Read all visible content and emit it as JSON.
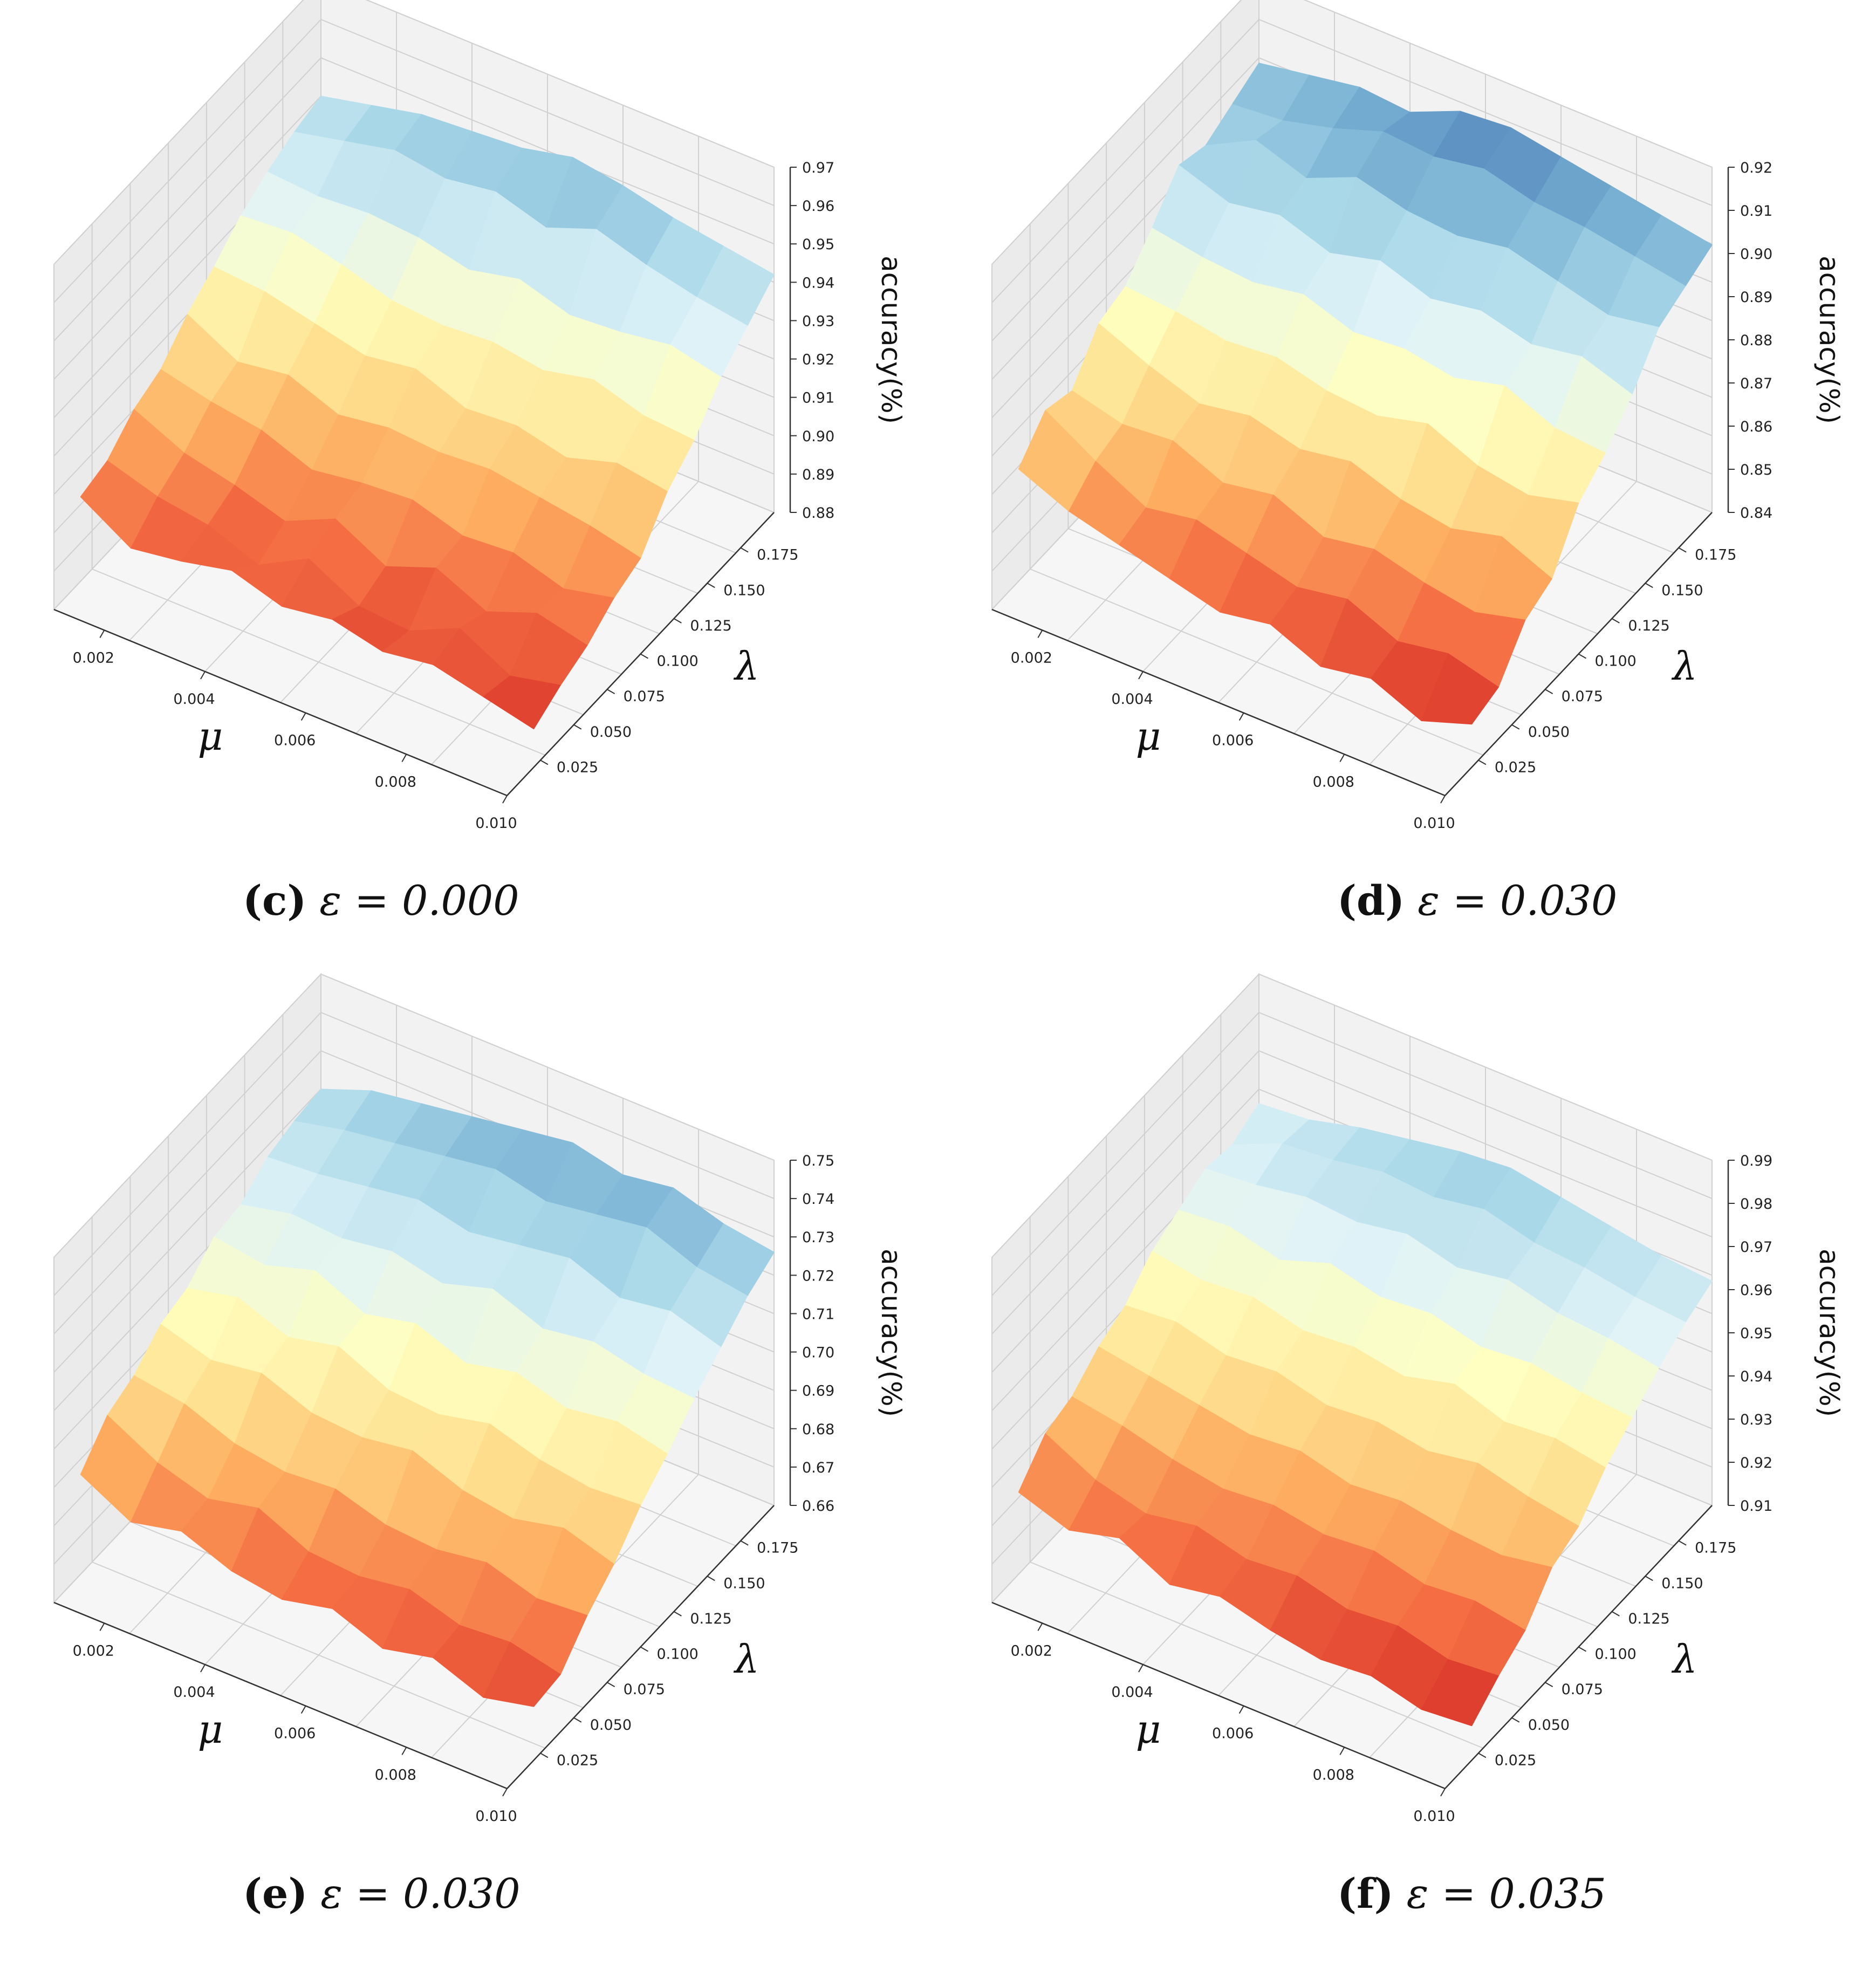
{
  "figure": {
    "panels": [
      {
        "id": "c",
        "caption_label": "(c)",
        "caption_eq": "ε = 0.000"
      },
      {
        "id": "d",
        "caption_label": "(d)",
        "caption_eq": "ε = 0.030"
      },
      {
        "id": "e",
        "caption_label": "(e)",
        "caption_eq": "ε = 0.030"
      },
      {
        "id": "f",
        "caption_label": "(f)",
        "caption_eq": "ε = 0.035"
      }
    ]
  },
  "colors": {
    "colormap": [
      "#a50026",
      "#d73027",
      "#f46d43",
      "#fdae61",
      "#fee090",
      "#ffffbf",
      "#e0f3f8",
      "#abd9e9",
      "#74add1",
      "#4575b4",
      "#313695"
    ]
  },
  "chart_data": [
    {
      "type": "surface3d",
      "title": "(c) ε = 0.000",
      "xlabel": "μ",
      "ylabel": "λ",
      "zlabel": "accuracy(%)",
      "x_ticks": [
        "0.002",
        "0.004",
        "0.006",
        "0.008",
        "0.010"
      ],
      "y_ticks": [
        "0.025",
        "0.050",
        "0.075",
        "0.100",
        "0.125",
        "0.150",
        "0.175"
      ],
      "z_ticks": [
        "0.88",
        "0.89",
        "0.90",
        "0.91",
        "0.92",
        "0.93",
        "0.94",
        "0.95",
        "0.96",
        "0.97"
      ],
      "x_range": [
        0.001,
        0.01
      ],
      "y_range": [
        0.0,
        0.2
      ],
      "zlim": [
        0.88,
        0.97
      ],
      "mu": [
        0.001,
        0.002,
        0.003,
        0.004,
        0.005,
        0.006,
        0.007,
        0.008,
        0.009,
        0.01
      ],
      "lambda": [
        0.02,
        0.04,
        0.06,
        0.08,
        0.1,
        0.12,
        0.14,
        0.16,
        0.18,
        0.2
      ],
      "z": [
        [
          0.902,
          0.904,
          0.91,
          0.913,
          0.92,
          0.925,
          0.931,
          0.935,
          0.938,
          0.94
        ],
        [
          0.894,
          0.9,
          0.904,
          0.91,
          0.913,
          0.924,
          0.932,
          0.934,
          0.941,
          0.943
        ],
        [
          0.896,
          0.898,
          0.901,
          0.908,
          0.915,
          0.921,
          0.929,
          0.935,
          0.944,
          0.946
        ],
        [
          0.899,
          0.893,
          0.897,
          0.903,
          0.91,
          0.918,
          0.925,
          0.934,
          0.942,
          0.947
        ],
        [
          0.895,
          0.9,
          0.903,
          0.905,
          0.912,
          0.92,
          0.924,
          0.931,
          0.944,
          0.948
        ],
        [
          0.897,
          0.893,
          0.896,
          0.906,
          0.911,
          0.915,
          0.925,
          0.934,
          0.94,
          0.951
        ],
        [
          0.894,
          0.892,
          0.901,
          0.902,
          0.912,
          0.916,
          0.923,
          0.93,
          0.945,
          0.949
        ],
        [
          0.896,
          0.898,
          0.895,
          0.903,
          0.91,
          0.913,
          0.926,
          0.931,
          0.941,
          0.946
        ],
        [
          0.893,
          0.891,
          0.9,
          0.899,
          0.908,
          0.917,
          0.922,
          0.933,
          0.938,
          0.944
        ],
        [
          0.89,
          0.894,
          0.897,
          0.902,
          0.905,
          0.915,
          0.921,
          0.93,
          0.936,
          0.942
        ]
      ]
    },
    {
      "type": "surface3d",
      "title": "(d) ε = 0.030",
      "xlabel": "μ",
      "ylabel": "λ",
      "zlabel": "accuracy(%)",
      "x_ticks": [
        "0.002",
        "0.004",
        "0.006",
        "0.008",
        "0.010"
      ],
      "y_ticks": [
        "0.025",
        "0.050",
        "0.075",
        "0.100",
        "0.125",
        "0.150",
        "0.175"
      ],
      "z_ticks": [
        "0.84",
        "0.85",
        "0.86",
        "0.87",
        "0.88",
        "0.89",
        "0.90",
        "0.91",
        "0.92"
      ],
      "x_range": [
        0.001,
        0.01
      ],
      "y_range": [
        0.0,
        0.2
      ],
      "zlim": [
        0.84,
        0.92
      ],
      "mu": [
        0.001,
        0.002,
        0.003,
        0.004,
        0.005,
        0.006,
        0.007,
        0.008,
        0.009,
        0.01
      ],
      "lambda": [
        0.02,
        0.04,
        0.06,
        0.08,
        0.1,
        0.12,
        0.14,
        0.16,
        0.18,
        0.2
      ],
      "z": [
        [
          0.866,
          0.873,
          0.871,
          0.88,
          0.882,
          0.889,
          0.897,
          0.895,
          0.898,
          0.901
        ],
        [
          0.861,
          0.866,
          0.868,
          0.875,
          0.881,
          0.887,
          0.893,
          0.901,
          0.899,
          0.903
        ],
        [
          0.858,
          0.86,
          0.869,
          0.871,
          0.879,
          0.886,
          0.895,
          0.897,
          0.902,
          0.905
        ],
        [
          0.855,
          0.862,
          0.864,
          0.873,
          0.88,
          0.888,
          0.891,
          0.902,
          0.906,
          0.904
        ],
        [
          0.852,
          0.859,
          0.866,
          0.87,
          0.877,
          0.884,
          0.894,
          0.899,
          0.905,
          0.909
        ],
        [
          0.854,
          0.856,
          0.861,
          0.872,
          0.876,
          0.885,
          0.89,
          0.898,
          0.907,
          0.91
        ],
        [
          0.849,
          0.858,
          0.863,
          0.868,
          0.879,
          0.883,
          0.892,
          0.9,
          0.904,
          0.908
        ],
        [
          0.851,
          0.853,
          0.86,
          0.866,
          0.874,
          0.886,
          0.889,
          0.897,
          0.903,
          0.906
        ],
        [
          0.846,
          0.855,
          0.858,
          0.869,
          0.872,
          0.881,
          0.891,
          0.894,
          0.901,
          0.904
        ],
        [
          0.85,
          0.852,
          0.861,
          0.864,
          0.875,
          0.88,
          0.887,
          0.896,
          0.899,
          0.902
        ]
      ]
    },
    {
      "type": "surface3d",
      "title": "(e) ε = 0.030",
      "xlabel": "μ",
      "ylabel": "λ",
      "zlabel": "accuracy(%)",
      "x_ticks": [
        "0.002",
        "0.004",
        "0.006",
        "0.008",
        "0.010"
      ],
      "y_ticks": [
        "0.025",
        "0.050",
        "0.075",
        "0.100",
        "0.125",
        "0.150",
        "0.175"
      ],
      "z_ticks": [
        "0.66",
        "0.67",
        "0.68",
        "0.69",
        "0.70",
        "0.71",
        "0.72",
        "0.73",
        "0.74",
        "0.75"
      ],
      "x_range": [
        0.001,
        0.01
      ],
      "y_range": [
        0.0,
        0.2
      ],
      "zlim": [
        0.66,
        0.75
      ],
      "mu": [
        0.001,
        0.002,
        0.003,
        0.004,
        0.005,
        0.006,
        0.007,
        0.008,
        0.009,
        0.01
      ],
      "lambda": [
        0.02,
        0.04,
        0.06,
        0.08,
        0.1,
        0.12,
        0.14,
        0.16,
        0.18,
        0.2
      ],
      "z": [
        [
          0.686,
          0.694,
          0.697,
          0.703,
          0.705,
          0.711,
          0.712,
          0.717,
          0.719,
          0.72
        ],
        [
          0.679,
          0.687,
          0.695,
          0.699,
          0.708,
          0.709,
          0.715,
          0.718,
          0.722,
          0.725
        ],
        [
          0.682,
          0.683,
          0.69,
          0.701,
          0.703,
          0.713,
          0.714,
          0.72,
          0.724,
          0.727
        ],
        [
          0.677,
          0.686,
          0.688,
          0.696,
          0.706,
          0.707,
          0.716,
          0.722,
          0.726,
          0.729
        ],
        [
          0.675,
          0.68,
          0.689,
          0.695,
          0.7,
          0.71,
          0.713,
          0.719,
          0.728,
          0.731
        ],
        [
          0.678,
          0.679,
          0.685,
          0.697,
          0.699,
          0.705,
          0.717,
          0.721,
          0.725,
          0.733
        ],
        [
          0.673,
          0.681,
          0.684,
          0.692,
          0.702,
          0.708,
          0.712,
          0.723,
          0.727,
          0.73
        ],
        [
          0.676,
          0.677,
          0.686,
          0.69,
          0.698,
          0.704,
          0.714,
          0.718,
          0.729,
          0.732
        ],
        [
          0.671,
          0.678,
          0.682,
          0.693,
          0.696,
          0.706,
          0.711,
          0.72,
          0.724,
          0.728
        ],
        [
          0.674,
          0.675,
          0.683,
          0.689,
          0.697,
          0.703,
          0.71,
          0.716,
          0.722,
          0.726
        ]
      ]
    },
    {
      "type": "surface3d",
      "title": "(f) ε = 0.035",
      "xlabel": "μ",
      "ylabel": "λ",
      "zlabel": "accuracy(%)",
      "x_ticks": [
        "0.002",
        "0.004",
        "0.006",
        "0.008",
        "0.010"
      ],
      "y_ticks": [
        "0.025",
        "0.050",
        "0.075",
        "0.100",
        "0.125",
        "0.150",
        "0.175"
      ],
      "z_ticks": [
        "0.91",
        "0.92",
        "0.93",
        "0.94",
        "0.95",
        "0.96",
        "0.97",
        "0.98",
        "0.99"
      ],
      "x_range": [
        0.001,
        0.01
      ],
      "y_range": [
        0.0,
        0.2
      ],
      "zlim": [
        0.91,
        0.99
      ],
      "mu": [
        0.001,
        0.002,
        0.003,
        0.004,
        0.005,
        0.006,
        0.007,
        0.008,
        0.009,
        0.01
      ],
      "lambda": [
        0.02,
        0.04,
        0.06,
        0.08,
        0.1,
        0.12,
        0.14,
        0.16,
        0.18,
        0.2
      ],
      "z": [
        [
          0.929,
          0.936,
          0.938,
          0.943,
          0.946,
          0.952,
          0.955,
          0.958,
          0.957,
          0.96
        ],
        [
          0.925,
          0.93,
          0.936,
          0.941,
          0.947,
          0.95,
          0.956,
          0.959,
          0.962,
          0.961
        ],
        [
          0.928,
          0.927,
          0.933,
          0.939,
          0.944,
          0.951,
          0.953,
          0.961,
          0.963,
          0.964
        ],
        [
          0.922,
          0.929,
          0.931,
          0.937,
          0.945,
          0.948,
          0.957,
          0.96,
          0.965,
          0.966
        ],
        [
          0.924,
          0.926,
          0.932,
          0.938,
          0.942,
          0.949,
          0.954,
          0.962,
          0.964,
          0.968
        ],
        [
          0.921,
          0.927,
          0.93,
          0.935,
          0.943,
          0.947,
          0.955,
          0.959,
          0.966,
          0.969
        ],
        [
          0.919,
          0.924,
          0.931,
          0.936,
          0.941,
          0.95,
          0.952,
          0.961,
          0.963,
          0.967
        ],
        [
          0.92,
          0.925,
          0.928,
          0.934,
          0.943,
          0.946,
          0.953,
          0.958,
          0.962,
          0.965
        ],
        [
          0.917,
          0.922,
          0.929,
          0.933,
          0.94,
          0.947,
          0.951,
          0.957,
          0.96,
          0.963
        ],
        [
          0.918,
          0.923,
          0.927,
          0.935,
          0.938,
          0.945,
          0.95,
          0.955,
          0.959,
          0.962
        ]
      ]
    }
  ]
}
